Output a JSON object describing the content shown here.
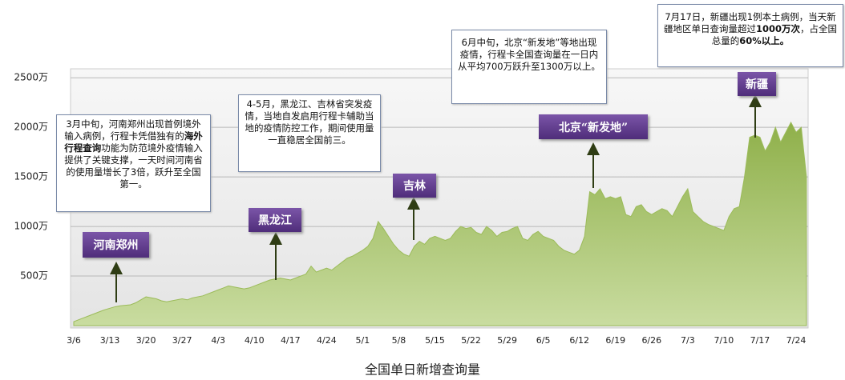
{
  "chart_data": {
    "type": "area",
    "xlabel": "全国单日新增查询量",
    "color": "#9bbb59",
    "ylim": [
      0,
      2550
    ],
    "yticks": [
      {
        "value": 500,
        "label": "500万"
      },
      {
        "value": 1000,
        "label": "1000万"
      },
      {
        "value": 1500,
        "label": "1500万"
      },
      {
        "value": 2000,
        "label": "2000万"
      },
      {
        "value": 2500,
        "label": "2500万"
      }
    ],
    "grid": true,
    "categories": [
      "3/6",
      null,
      null,
      null,
      null,
      null,
      null,
      "3/13",
      null,
      null,
      null,
      null,
      null,
      null,
      "3/20",
      null,
      null,
      null,
      null,
      null,
      null,
      "3/27",
      null,
      null,
      null,
      null,
      null,
      null,
      "4/3",
      null,
      null,
      null,
      null,
      null,
      null,
      "4/10",
      null,
      null,
      null,
      null,
      null,
      null,
      "4/17",
      null,
      null,
      null,
      null,
      null,
      null,
      "4/24",
      null,
      null,
      null,
      null,
      null,
      null,
      "5/1",
      null,
      null,
      null,
      null,
      null,
      null,
      "5/8",
      null,
      null,
      null,
      null,
      null,
      null,
      "5/15",
      null,
      null,
      null,
      null,
      null,
      null,
      "5/22",
      null,
      null,
      null,
      null,
      null,
      null,
      "5/29",
      null,
      null,
      null,
      null,
      null,
      null,
      "6/5",
      null,
      null,
      null,
      null,
      null,
      null,
      "6/12",
      null,
      null,
      null,
      null,
      null,
      null,
      "6/19",
      null,
      null,
      null,
      null,
      null,
      null,
      "6/26",
      null,
      null,
      null,
      null,
      null,
      null,
      "7/3",
      null,
      null,
      null,
      null,
      null,
      null,
      "7/10",
      null,
      null,
      null,
      null,
      null,
      null,
      "7/17",
      null,
      null,
      null,
      null,
      null,
      null,
      "7/24",
      null,
      null
    ],
    "values": [
      40,
      60,
      80,
      100,
      120,
      140,
      160,
      175,
      190,
      200,
      205,
      210,
      230,
      260,
      290,
      280,
      270,
      250,
      240,
      250,
      260,
      270,
      260,
      280,
      290,
      300,
      320,
      340,
      360,
      380,
      400,
      390,
      380,
      370,
      380,
      400,
      420,
      440,
      460,
      470,
      480,
      470,
      460,
      480,
      500,
      520,
      600,
      540,
      560,
      580,
      560,
      600,
      640,
      680,
      700,
      730,
      760,
      800,
      880,
      1050,
      980,
      900,
      820,
      760,
      720,
      700,
      800,
      850,
      820,
      880,
      900,
      880,
      860,
      880,
      950,
      1000,
      980,
      990,
      940,
      920,
      1000,
      960,
      900,
      940,
      950,
      980,
      1000,
      880,
      860,
      920,
      950,
      900,
      880,
      860,
      800,
      760,
      740,
      720,
      760,
      900,
      1350,
      1320,
      1380,
      1280,
      1300,
      1280,
      1300,
      1120,
      1100,
      1200,
      1220,
      1150,
      1120,
      1150,
      1180,
      1160,
      1100,
      1200,
      1300,
      1380,
      1150,
      1100,
      1050,
      1020,
      1000,
      980,
      960,
      1100,
      1180,
      1200,
      1500,
      1900,
      1920,
      1900,
      1760,
      1850,
      2000,
      1850,
      1950,
      2050,
      1950,
      2000,
      1500
    ],
    "tags": [
      "河南郑州",
      "黑龙江",
      "吉林",
      "北京“新发地”",
      "新疆"
    ],
    "notes": [
      [
        {
          "text": "3月中旬，河南郑州出现首例境外输入病例，行程卡凭借独有的",
          "bold": false
        },
        {
          "text": "海外行程查询",
          "bold": true
        },
        {
          "text": "功能为防范境外疫情输入提供了关键支撑，一天时间河南省的使用量增长了3倍，跃升至全国第一。",
          "bold": false
        }
      ],
      [
        {
          "text": "4-5月，黑龙江、吉林省突发疫情，当地自发启用行程卡辅助当地的疫情防控工作，期间使用量一直稳居全国前三。",
          "bold": false
        }
      ],
      [
        {
          "text": "6月中旬，北京“新发地”等地出现疫情，行程卡全国查询量在一日内从平均700万跃升至1300万以上。",
          "bold": false
        }
      ],
      [
        {
          "text": "7月17日，新疆出现1例本土病例，当天新疆地区单日查询量超过",
          "bold": false
        },
        {
          "text": "1000万次",
          "bold": true
        },
        {
          "text": "，占全国总量的",
          "bold": false
        },
        {
          "text": "60%以上。",
          "bold": true
        }
      ]
    ]
  }
}
